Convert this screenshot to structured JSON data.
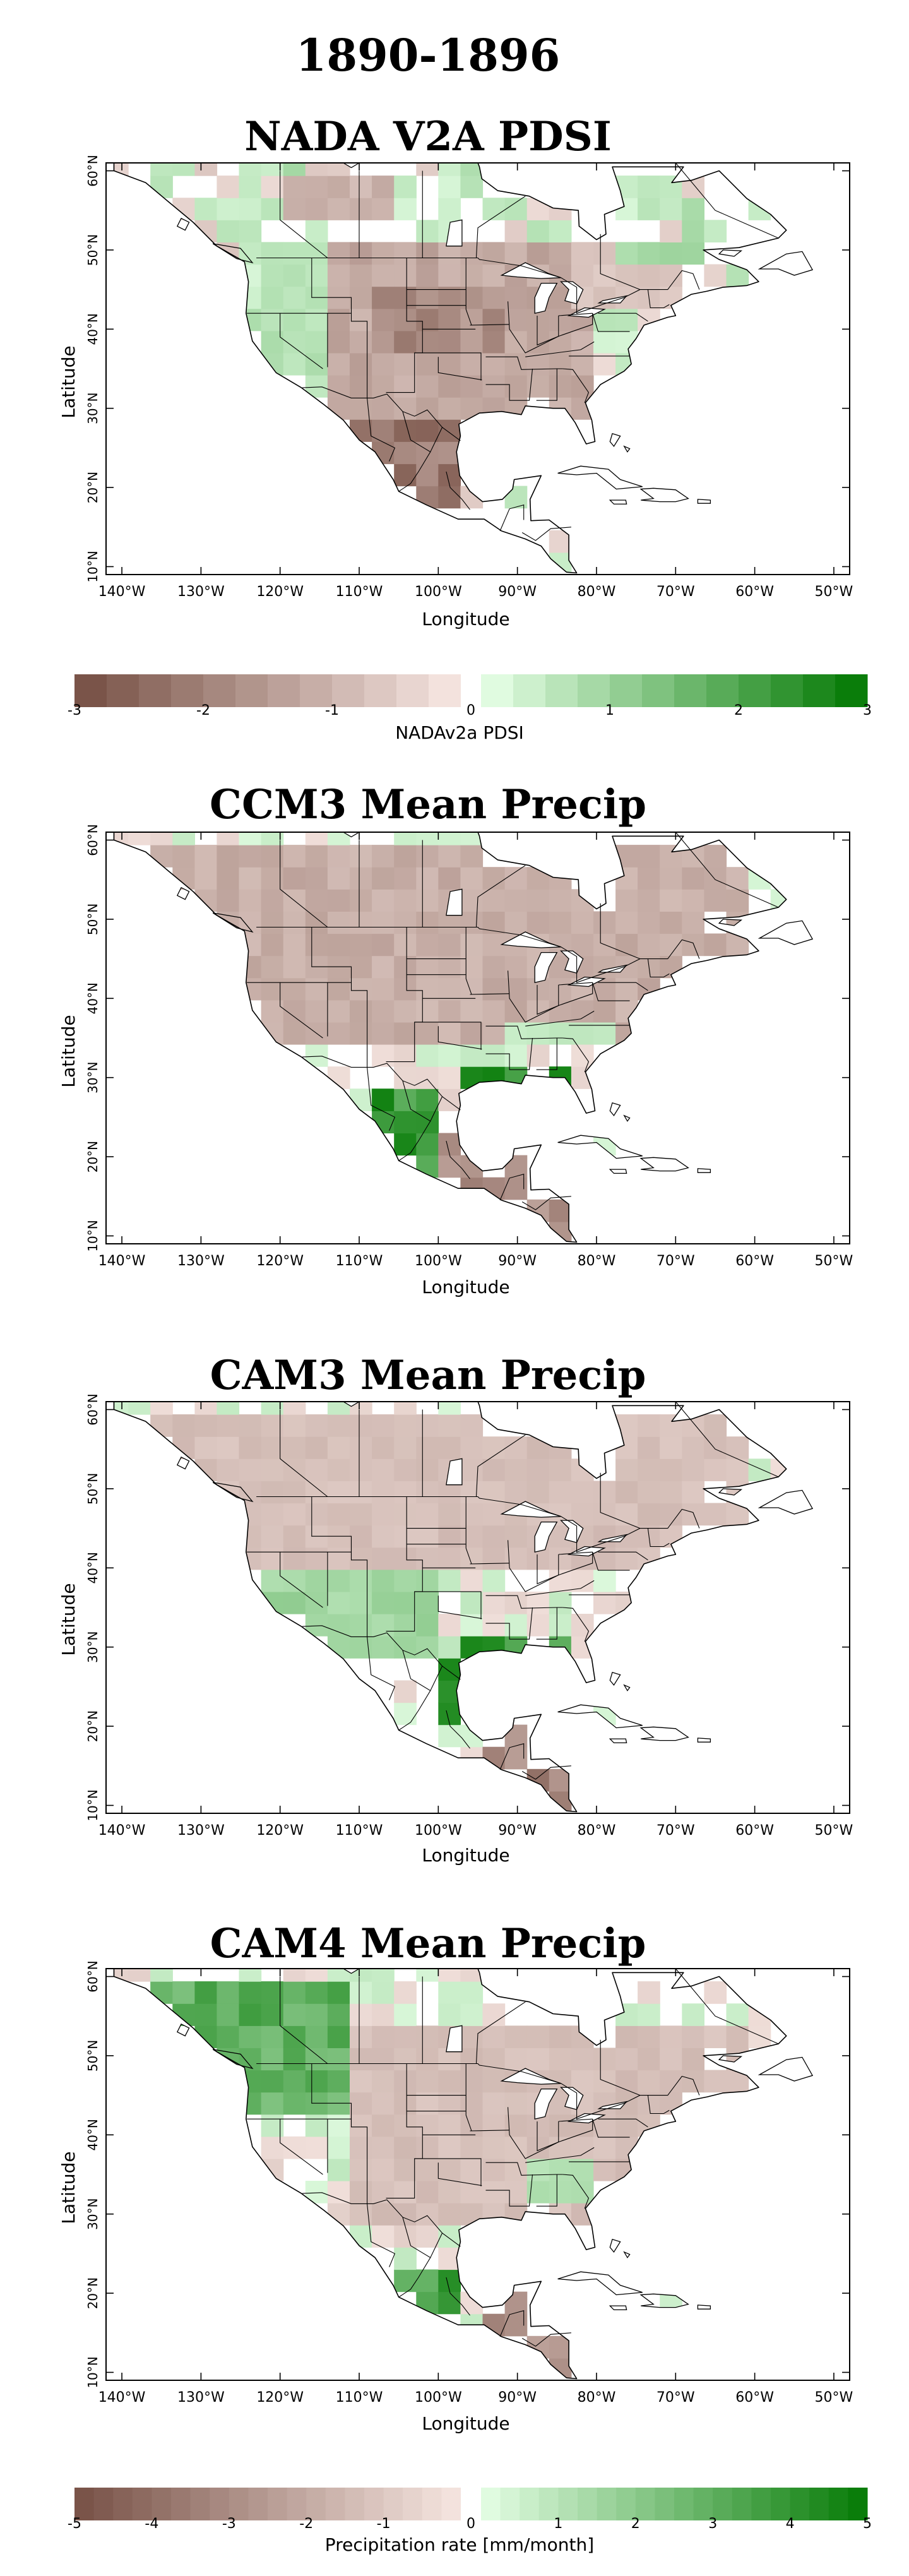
{
  "figure": {
    "title": "1890-1896"
  },
  "panels": [
    {
      "title": "NADA V2A PDSI",
      "xlabel": "Longitude",
      "ylabel": "Latitude"
    },
    {
      "title": "CCM3 Mean Precip",
      "xlabel": "Longitude",
      "ylabel": "Latitude"
    },
    {
      "title": "CAM3 Mean Precip",
      "xlabel": "Longitude",
      "ylabel": "Latitude"
    },
    {
      "title": "CAM4 Mean Precip",
      "xlabel": "Longitude",
      "ylabel": "Latitude"
    }
  ],
  "xticks": [
    "140°W",
    "130°W",
    "120°W",
    "110°W",
    "100°W",
    "90°W",
    "80°W",
    "70°W",
    "60°W",
    "50°W"
  ],
  "yticks": [
    "10°N",
    "20°N",
    "30°N",
    "40°N",
    "50°N",
    "60°N"
  ],
  "colorbars": [
    {
      "label": "NADAv2a PDSI",
      "ticks": [
        "-3",
        "-2",
        "-1",
        "0",
        "1",
        "2",
        "3"
      ],
      "min": -3,
      "max": 3
    },
    {
      "label": "Precipitation rate [mm/month]",
      "ticks": [
        "-5",
        "-4",
        "-3",
        "-2",
        "-1",
        "0",
        "1",
        "2",
        "3",
        "4",
        "5"
      ],
      "min": -5,
      "max": 5
    }
  ],
  "colors": {
    "brown_dark": "#7a5449",
    "brown_light": "#f3e2dd",
    "green_light": "#e0fbe0",
    "green_dark": "#0a7d0a",
    "missing": "#ffffff",
    "coast": "#000000"
  },
  "chart_data": [
    {
      "type": "heatmap",
      "title": "NADA V2A PDSI",
      "xlabel": "Longitude",
      "ylabel": "Latitude",
      "xlim": [
        -142,
        -48
      ],
      "ylim": [
        9,
        61
      ],
      "zlim": [
        -3,
        3
      ],
      "variable": "NADAv2a PDSI",
      "regions": [
        {
          "lon": [
            -123,
            -115
          ],
          "lat": [
            32,
            50
          ],
          "value": 0.6
        },
        {
          "lon": [
            -115,
            -80
          ],
          "lat": [
            30,
            50
          ],
          "value": -1.2
        },
        {
          "lon": [
            -108,
            -92
          ],
          "lat": [
            36,
            46
          ],
          "value": -1.8
        },
        {
          "lon": [
            -112,
            -98
          ],
          "lat": [
            18,
            30
          ],
          "value": -2.2
        },
        {
          "lon": [
            -82,
            -70
          ],
          "lat": [
            42,
            52
          ],
          "value": -0.6
        },
        {
          "lon": [
            -78,
            -66
          ],
          "lat": [
            47,
            52
          ],
          "value": 0.8
        },
        {
          "lon": [
            -120,
            -105
          ],
          "lat": [
            53,
            58
          ],
          "value": -1.0
        }
      ]
    },
    {
      "type": "heatmap",
      "title": "CCM3 Mean Precip",
      "xlabel": "Longitude",
      "ylabel": "Latitude",
      "xlim": [
        -142,
        -48
      ],
      "ylim": [
        9,
        61
      ],
      "zlim": [
        -5,
        5
      ],
      "variable": "Precipitation rate [mm/month]",
      "regions": [
        {
          "lon": [
            -135,
            -60
          ],
          "lat": [
            35,
            58
          ],
          "value": -1.8
        },
        {
          "lon": [
            -108,
            -100
          ],
          "lat": [
            18,
            28
          ],
          "value": 4.0
        },
        {
          "lon": [
            -97,
            -83
          ],
          "lat": [
            29,
            32
          ],
          "value": 4.2
        },
        {
          "lon": [
            -100,
            -84
          ],
          "lat": [
            10,
            22
          ],
          "value": -3.0
        },
        {
          "lon": [
            -92,
            -78
          ],
          "lat": [
            34,
            38
          ],
          "value": 0.7
        }
      ]
    },
    {
      "type": "heatmap",
      "title": "CAM3 Mean Precip",
      "xlabel": "Longitude",
      "ylabel": "Latitude",
      "xlim": [
        -142,
        -48
      ],
      "ylim": [
        9,
        61
      ],
      "zlim": [
        -5,
        5
      ],
      "variable": "Precipitation rate [mm/month]",
      "regions": [
        {
          "lon": [
            -122,
            -100
          ],
          "lat": [
            28,
            40
          ],
          "value": 1.5
        },
        {
          "lon": [
            -100,
            -96
          ],
          "lat": [
            19,
            30
          ],
          "value": 4.0
        },
        {
          "lon": [
            -96,
            -82
          ],
          "lat": [
            29,
            31
          ],
          "value": 4.0
        },
        {
          "lon": [
            -135,
            -60
          ],
          "lat": [
            40,
            58
          ],
          "value": -1.2
        },
        {
          "lon": [
            -95,
            -84
          ],
          "lat": [
            10,
            20
          ],
          "value": -3.2
        }
      ]
    },
    {
      "type": "heatmap",
      "title": "CAM4 Mean Precip",
      "xlabel": "Longitude",
      "ylabel": "Latitude",
      "xlim": [
        -142,
        -48
      ],
      "ylim": [
        9,
        61
      ],
      "zlim": [
        -5,
        5
      ],
      "variable": "Precipitation rate [mm/month]",
      "regions": [
        {
          "lon": [
            -135,
            -112
          ],
          "lat": [
            42,
            58
          ],
          "value": 3.0
        },
        {
          "lon": [
            -110,
            -60
          ],
          "lat": [
            30,
            55
          ],
          "value": -1.2
        },
        {
          "lon": [
            -106,
            -96
          ],
          "lat": [
            17,
            24
          ],
          "value": 3.5
        },
        {
          "lon": [
            -95,
            -84
          ],
          "lat": [
            10,
            20
          ],
          "value": -3.0
        },
        {
          "lon": [
            -90,
            -80
          ],
          "lat": [
            31,
            36
          ],
          "value": 1.2
        }
      ]
    }
  ]
}
